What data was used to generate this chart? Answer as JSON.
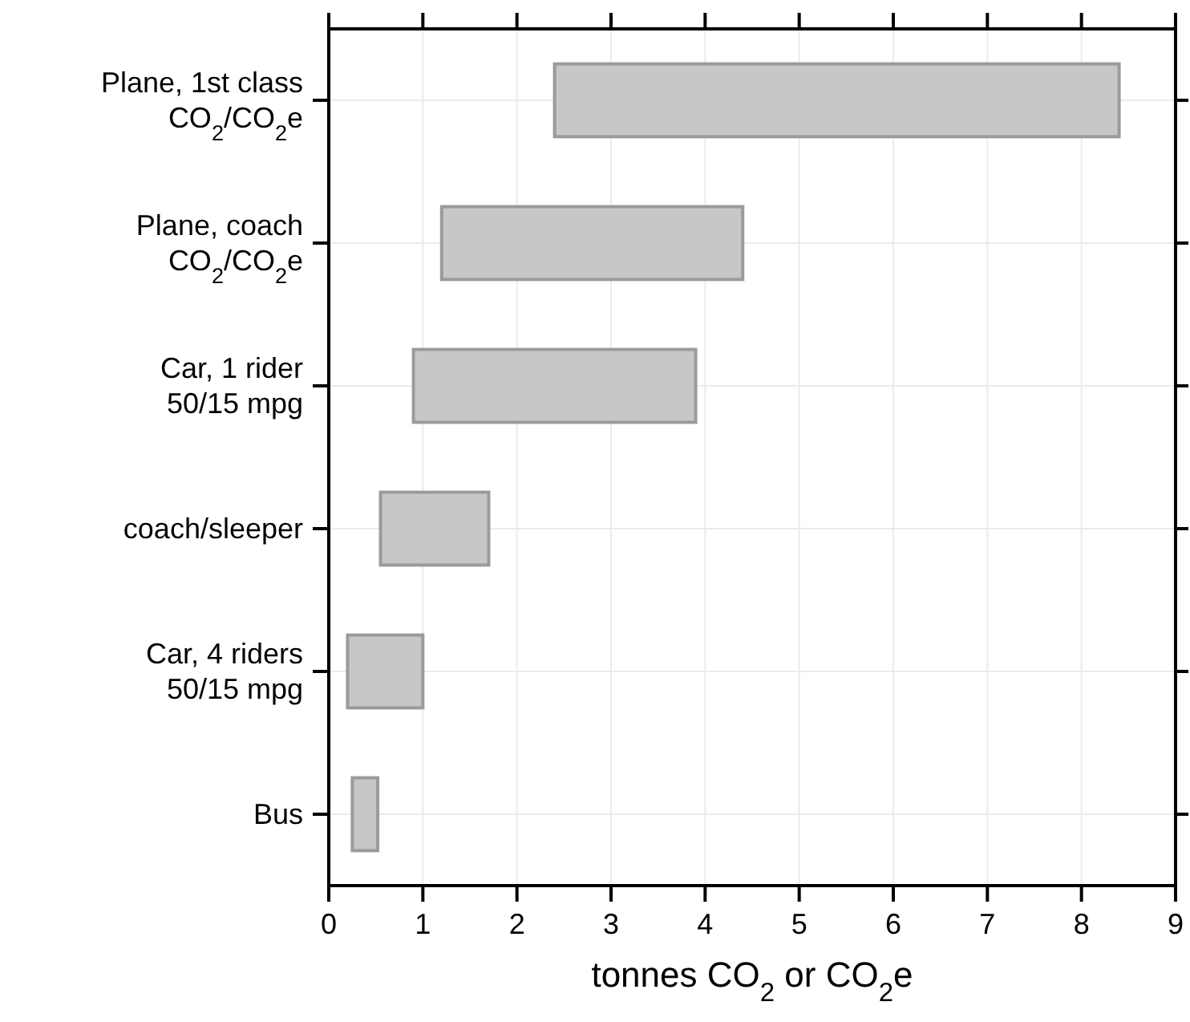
{
  "chart_data": {
    "type": "bar",
    "orientation": "horizontal",
    "categories": [
      "Plane, 1st class\nCO$_{2}$/CO$_{2}$e",
      "Plane, coach\nCO$_{2}$/CO$_{2}$e",
      "Car, 1 rider\n50/15 mpg",
      "coach/sleeper",
      "Car, 4 riders\n50/15 mpg",
      "Bus"
    ],
    "base": [
      2.4,
      1.2,
      0.9,
      0.55,
      0.2,
      0.25
    ],
    "values": [
      6.0,
      3.2,
      3.0,
      1.15,
      0.8,
      0.27
    ],
    "color": "#c6c7c9",
    "xlim": [
      0,
      9
    ],
    "xticks": [
      0,
      1,
      2,
      3,
      4,
      5,
      6,
      7,
      8,
      9
    ],
    "xlabel": "tonnes CO$_{2}$ or CO$_{2}$e",
    "grid": true
  }
}
